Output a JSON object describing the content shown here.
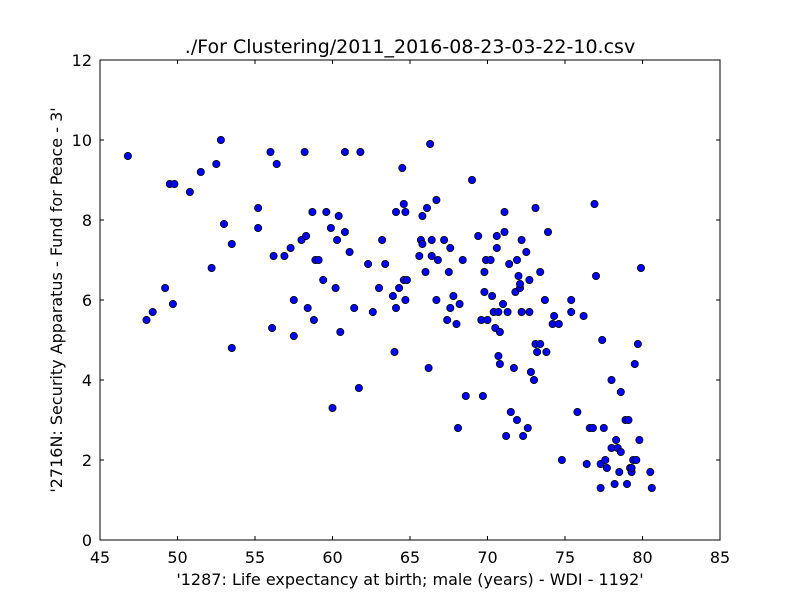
{
  "chart_data": {
    "type": "scatter",
    "title": "./For Clustering/2011_2016-08-23-03-22-10.csv",
    "xlabel": "'1287: Life expectancy at birth; male  (years) - WDI - 1192'",
    "ylabel": "'2716N: Security Apparatus - Fund for Peace - 3'",
    "xlim": [
      45,
      85
    ],
    "ylim": [
      0,
      12
    ],
    "xticks": [
      45,
      50,
      55,
      60,
      65,
      70,
      75,
      80,
      85
    ],
    "yticks": [
      0,
      2,
      4,
      6,
      8,
      10,
      12
    ],
    "grid": false,
    "marker_color": "#0000ff",
    "marker_edge_color": "#000000",
    "series": [
      {
        "name": "points",
        "points": [
          [
            46.8,
            9.6
          ],
          [
            48.0,
            5.5
          ],
          [
            48.4,
            5.7
          ],
          [
            49.2,
            6.3
          ],
          [
            49.5,
            8.9
          ],
          [
            49.7,
            5.9
          ],
          [
            49.8,
            8.9
          ],
          [
            50.8,
            8.7
          ],
          [
            51.5,
            9.2
          ],
          [
            52.2,
            6.8
          ],
          [
            52.5,
            9.4
          ],
          [
            52.8,
            10.0
          ],
          [
            53.0,
            7.9
          ],
          [
            53.5,
            7.4
          ],
          [
            53.5,
            4.8
          ],
          [
            55.2,
            8.3
          ],
          [
            55.2,
            7.8
          ],
          [
            56.0,
            9.7
          ],
          [
            56.1,
            5.3
          ],
          [
            56.2,
            7.1
          ],
          [
            56.4,
            9.4
          ],
          [
            56.9,
            7.1
          ],
          [
            57.3,
            7.3
          ],
          [
            57.5,
            6.0
          ],
          [
            57.5,
            5.1
          ],
          [
            58.0,
            7.5
          ],
          [
            58.2,
            9.7
          ],
          [
            58.3,
            7.6
          ],
          [
            58.4,
            5.8
          ],
          [
            58.7,
            8.2
          ],
          [
            58.8,
            5.5
          ],
          [
            58.9,
            7.0
          ],
          [
            59.1,
            7.0
          ],
          [
            59.4,
            6.5
          ],
          [
            59.6,
            8.2
          ],
          [
            59.9,
            7.8
          ],
          [
            60.0,
            3.3
          ],
          [
            60.2,
            6.3
          ],
          [
            60.3,
            7.5
          ],
          [
            60.4,
            8.1
          ],
          [
            60.5,
            5.2
          ],
          [
            60.8,
            7.7
          ],
          [
            60.8,
            9.7
          ],
          [
            61.1,
            7.2
          ],
          [
            61.4,
            5.8
          ],
          [
            61.7,
            3.8
          ],
          [
            61.8,
            9.7
          ],
          [
            62.3,
            6.9
          ],
          [
            62.6,
            5.7
          ],
          [
            63.0,
            6.3
          ],
          [
            63.2,
            7.5
          ],
          [
            63.4,
            6.9
          ],
          [
            63.9,
            6.1
          ],
          [
            64.0,
            4.7
          ],
          [
            64.1,
            8.2
          ],
          [
            64.1,
            5.8
          ],
          [
            64.3,
            6.3
          ],
          [
            64.5,
            9.3
          ],
          [
            64.6,
            8.4
          ],
          [
            64.6,
            6.5
          ],
          [
            64.7,
            8.2
          ],
          [
            64.7,
            6.0
          ],
          [
            64.8,
            6.5
          ],
          [
            65.6,
            7.1
          ],
          [
            65.7,
            7.5
          ],
          [
            65.8,
            8.1
          ],
          [
            65.8,
            7.4
          ],
          [
            66.0,
            6.7
          ],
          [
            66.1,
            8.3
          ],
          [
            66.2,
            4.3
          ],
          [
            66.3,
            9.9
          ],
          [
            66.4,
            7.5
          ],
          [
            66.4,
            7.1
          ],
          [
            66.7,
            8.5
          ],
          [
            66.7,
            6.0
          ],
          [
            66.8,
            7.0
          ],
          [
            67.2,
            7.5
          ],
          [
            67.4,
            5.5
          ],
          [
            67.5,
            6.7
          ],
          [
            67.6,
            7.3
          ],
          [
            67.6,
            5.8
          ],
          [
            67.8,
            6.1
          ],
          [
            68.0,
            5.4
          ],
          [
            68.1,
            2.8
          ],
          [
            68.2,
            5.9
          ],
          [
            68.4,
            7.0
          ],
          [
            68.6,
            3.6
          ],
          [
            69.0,
            9.0
          ],
          [
            69.4,
            7.6
          ],
          [
            69.6,
            5.5
          ],
          [
            69.7,
            3.6
          ],
          [
            69.8,
            6.7
          ],
          [
            69.8,
            6.2
          ],
          [
            69.9,
            7.0
          ],
          [
            70.0,
            5.5
          ],
          [
            70.2,
            7.0
          ],
          [
            70.3,
            6.1
          ],
          [
            70.4,
            5.7
          ],
          [
            70.5,
            5.3
          ],
          [
            70.6,
            7.3
          ],
          [
            70.6,
            7.6
          ],
          [
            70.7,
            4.6
          ],
          [
            70.7,
            5.7
          ],
          [
            70.8,
            5.2
          ],
          [
            70.8,
            4.4
          ],
          [
            71.0,
            5.9
          ],
          [
            71.1,
            7.7
          ],
          [
            71.1,
            8.2
          ],
          [
            71.2,
            2.6
          ],
          [
            71.3,
            5.7
          ],
          [
            71.4,
            6.9
          ],
          [
            71.5,
            3.2
          ],
          [
            71.7,
            4.3
          ],
          [
            71.8,
            6.2
          ],
          [
            71.9,
            7.0
          ],
          [
            71.9,
            3.0
          ],
          [
            72.0,
            6.6
          ],
          [
            72.1,
            6.3
          ],
          [
            72.1,
            6.4
          ],
          [
            72.2,
            5.7
          ],
          [
            72.2,
            7.5
          ],
          [
            72.3,
            2.6
          ],
          [
            72.5,
            7.2
          ],
          [
            72.6,
            2.8
          ],
          [
            72.7,
            5.7
          ],
          [
            72.7,
            6.5
          ],
          [
            72.8,
            4.2
          ],
          [
            73.0,
            4.0
          ],
          [
            73.1,
            4.9
          ],
          [
            73.1,
            8.3
          ],
          [
            73.2,
            4.7
          ],
          [
            73.4,
            6.7
          ],
          [
            73.4,
            4.9
          ],
          [
            73.7,
            6.0
          ],
          [
            73.8,
            4.7
          ],
          [
            73.9,
            7.7
          ],
          [
            74.2,
            5.4
          ],
          [
            74.3,
            5.6
          ],
          [
            74.6,
            5.4
          ],
          [
            74.8,
            2.0
          ],
          [
            75.4,
            5.7
          ],
          [
            75.4,
            6.0
          ],
          [
            75.8,
            3.2
          ],
          [
            76.2,
            5.6
          ],
          [
            76.4,
            1.9
          ],
          [
            76.6,
            2.8
          ],
          [
            76.8,
            2.8
          ],
          [
            76.9,
            8.4
          ],
          [
            77.0,
            6.6
          ],
          [
            77.3,
            1.3
          ],
          [
            77.3,
            1.9
          ],
          [
            77.4,
            5.0
          ],
          [
            77.5,
            2.8
          ],
          [
            77.6,
            2.0
          ],
          [
            77.7,
            1.8
          ],
          [
            78.0,
            2.3
          ],
          [
            78.0,
            4.0
          ],
          [
            78.2,
            1.4
          ],
          [
            78.3,
            2.5
          ],
          [
            78.4,
            2.3
          ],
          [
            78.5,
            1.7
          ],
          [
            78.6,
            3.7
          ],
          [
            78.6,
            2.2
          ],
          [
            78.9,
            3.0
          ],
          [
            79.0,
            1.4
          ],
          [
            79.1,
            3.0
          ],
          [
            79.2,
            1.8
          ],
          [
            79.3,
            1.7
          ],
          [
            79.3,
            1.8
          ],
          [
            79.4,
            2.0
          ],
          [
            79.5,
            4.4
          ],
          [
            79.6,
            2.0
          ],
          [
            79.7,
            4.9
          ],
          [
            79.8,
            2.5
          ],
          [
            79.9,
            6.8
          ],
          [
            80.5,
            1.7
          ],
          [
            80.6,
            1.3
          ]
        ]
      }
    ]
  }
}
